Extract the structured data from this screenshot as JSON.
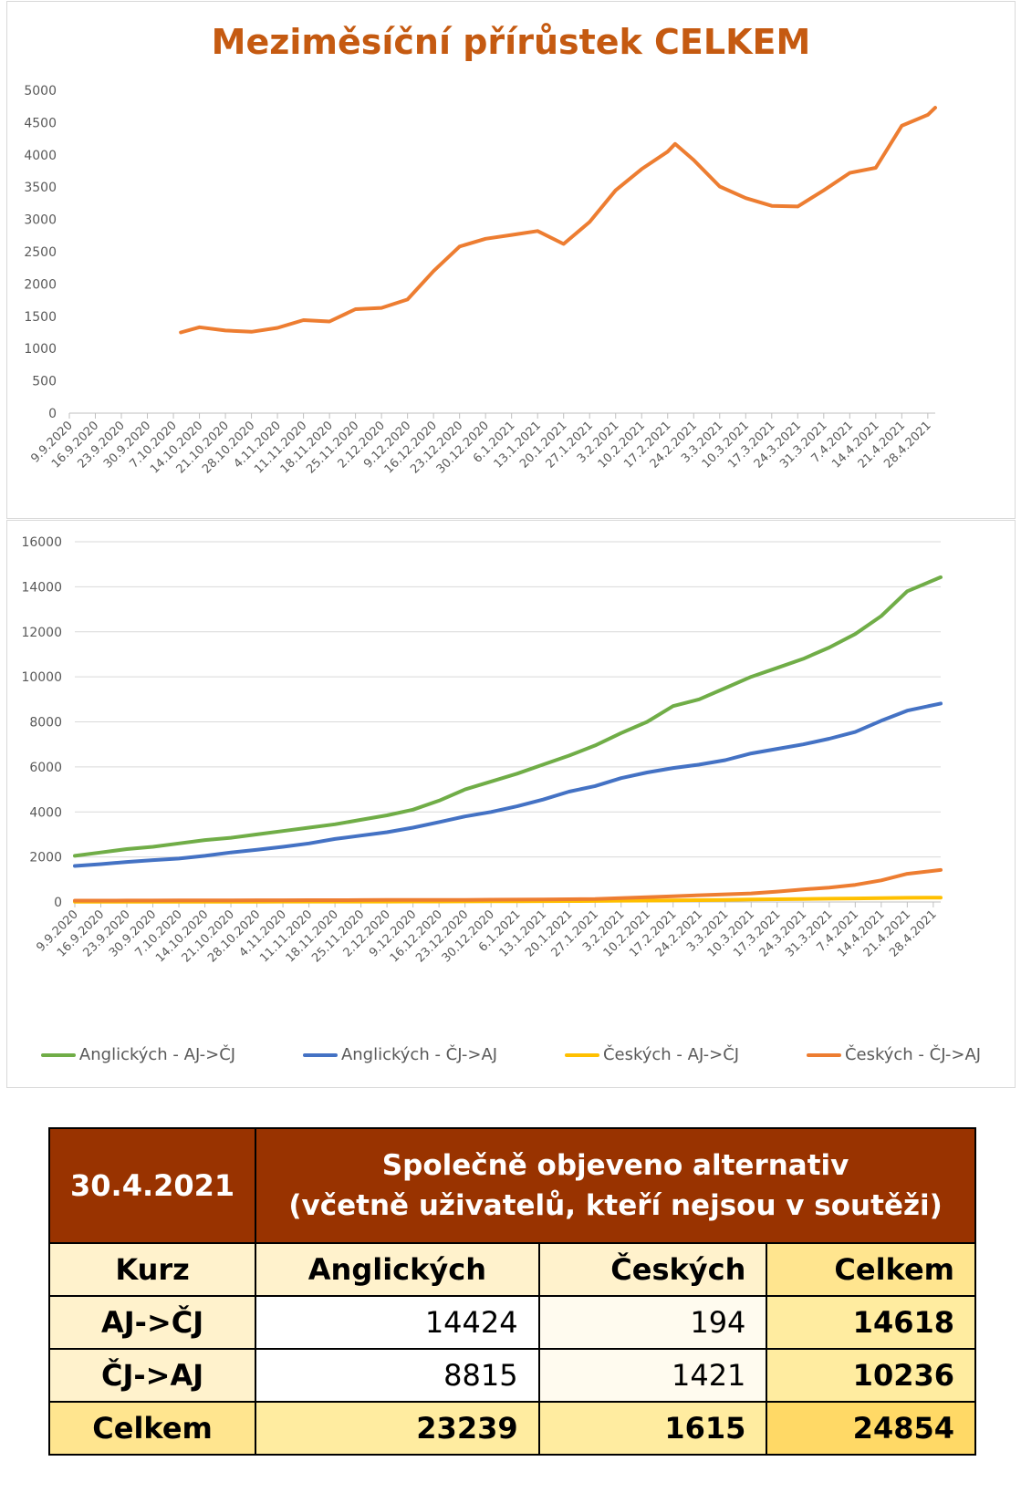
{
  "chart_data": [
    {
      "type": "line",
      "title": "Meziměsíční přírůstek CELKEM",
      "ylim": [
        0,
        5000
      ],
      "yticks": [
        0,
        500,
        1000,
        1500,
        2000,
        2500,
        3000,
        3500,
        4000,
        4500,
        5000
      ],
      "xticks": [
        "9.9.2020",
        "16.9.2020",
        "23.9.2020",
        "30.9.2020",
        "7.10.2020",
        "14.10.2020",
        "21.10.2020",
        "28.10.2020",
        "4.11.2020",
        "11.11.2020",
        "18.11.2020",
        "25.11.2020",
        "2.12.2020",
        "9.12.2020",
        "16.12.2020",
        "23.12.2020",
        "30.12.2020",
        "6.1.2021",
        "13.1.2021",
        "20.1.2021",
        "27.1.2021",
        "3.2.2021",
        "10.2.2021",
        "17.2.2021",
        "24.2.2021",
        "3.3.2021",
        "10.3.2021",
        "17.3.2021",
        "24.3.2021",
        "31.3.2021",
        "7.4.2021",
        "14.4.2021",
        "21.4.2021",
        "28.4.2021"
      ],
      "grid": false,
      "series": [
        {
          "color": "#ed7d31",
          "x": [
            "9.10.2020",
            "14.10.2020",
            "21.10.2020",
            "28.10.2020",
            "4.11.2020",
            "11.11.2020",
            "18.11.2020",
            "25.11.2020",
            "2.12.2020",
            "9.12.2020",
            "16.12.2020",
            "23.12.2020",
            "30.12.2020",
            "6.1.2021",
            "13.1.2021",
            "20.1.2021",
            "27.1.2021",
            "3.2.2021",
            "10.2.2021",
            "17.2.2021",
            "19.2.2021",
            "24.2.2021",
            "3.3.2021",
            "10.3.2021",
            "17.3.2021",
            "24.3.2021",
            "31.3.2021",
            "7.4.2021",
            "14.4.2021",
            "21.4.2021",
            "28.4.2021",
            "30.4.2021"
          ],
          "values": [
            1250,
            1330,
            1280,
            1260,
            1320,
            1440,
            1420,
            1610,
            1630,
            1760,
            2200,
            2580,
            2700,
            2760,
            2820,
            2620,
            2960,
            3450,
            3780,
            4050,
            4170,
            3920,
            3510,
            3330,
            3210,
            3200,
            3450,
            3720,
            3800,
            4450,
            4620,
            4730
          ]
        }
      ]
    },
    {
      "type": "line",
      "ylim": [
        0,
        16000
      ],
      "yticks": [
        0,
        2000,
        4000,
        6000,
        8000,
        10000,
        12000,
        14000,
        16000
      ],
      "xticks": [
        "9.9.2020",
        "16.9.2020",
        "23.9.2020",
        "30.9.2020",
        "7.10.2020",
        "14.10.2020",
        "21.10.2020",
        "28.10.2020",
        "4.11.2020",
        "11.11.2020",
        "18.11.2020",
        "25.11.2020",
        "2.12.2020",
        "9.12.2020",
        "16.12.2020",
        "23.12.2020",
        "30.12.2020",
        "6.1.2021",
        "13.1.2021",
        "20.1.2021",
        "27.1.2021",
        "3.2.2021",
        "10.2.2021",
        "17.2.2021",
        "24.2.2021",
        "3.3.2021",
        "10.3.2021",
        "17.3.2021",
        "24.3.2021",
        "31.3.2021",
        "7.4.2021",
        "14.4.2021",
        "21.4.2021",
        "28.4.2021"
      ],
      "grid": true,
      "legend": "bottom",
      "series": [
        {
          "name": "Anglických - AJ->ČJ",
          "color": "#70ad47",
          "values": [
            2050,
            2200,
            2350,
            2450,
            2600,
            2750,
            2850,
            3000,
            3150,
            3300,
            3450,
            3650,
            3850,
            4100,
            4500,
            5000,
            5350,
            5700,
            6100,
            6500,
            6950,
            7500,
            8000,
            8700,
            9000,
            9500,
            10000,
            10400,
            10800,
            11300,
            11900,
            12700,
            13800,
            14424
          ]
        },
        {
          "name": "Anglických - ČJ->AJ",
          "color": "#4472c4",
          "values": [
            1600,
            1680,
            1780,
            1860,
            1930,
            2050,
            2200,
            2320,
            2450,
            2600,
            2800,
            2950,
            3100,
            3300,
            3550,
            3800,
            4000,
            4250,
            4550,
            4900,
            5150,
            5500,
            5750,
            5950,
            6100,
            6300,
            6600,
            6800,
            7000,
            7250,
            7550,
            8050,
            8500,
            8815
          ]
        },
        {
          "name": "Českých - AJ->ČJ",
          "color": "#ffc000",
          "values": [
            10,
            10,
            10,
            10,
            10,
            12,
            12,
            14,
            15,
            15,
            15,
            18,
            18,
            20,
            22,
            25,
            28,
            30,
            35,
            40,
            45,
            55,
            60,
            70,
            80,
            95,
            110,
            120,
            130,
            145,
            160,
            170,
            185,
            194
          ]
        },
        {
          "name": "Českých - ČJ->AJ",
          "color": "#ed7d31",
          "values": [
            60,
            62,
            64,
            66,
            68,
            70,
            72,
            75,
            78,
            80,
            82,
            85,
            88,
            90,
            92,
            95,
            100,
            105,
            110,
            120,
            130,
            170,
            210,
            250,
            300,
            340,
            380,
            460,
            560,
            640,
            760,
            960,
            1250,
            1421
          ]
        }
      ]
    }
  ],
  "table": {
    "date": "30.4.2021",
    "heading_line1": "Společně objeveno alternativ",
    "heading_line2": "(včetně uživatelů, kteří nejsou v soutěži)",
    "col_kurz": "Kurz",
    "col_anglickych": "Anglických",
    "col_ceskych": "Českých",
    "col_celkem": "Celkem",
    "rows": [
      {
        "label": "AJ->ČJ",
        "anglickych": "14424",
        "ceskych": "194",
        "celkem": "14618"
      },
      {
        "label": "ČJ->AJ",
        "anglickych": "8815",
        "ceskych": "1421",
        "celkem": "10236"
      },
      {
        "label": "Celkem",
        "anglickych": "23239",
        "ceskych": "1615",
        "celkem": "24854"
      }
    ]
  }
}
